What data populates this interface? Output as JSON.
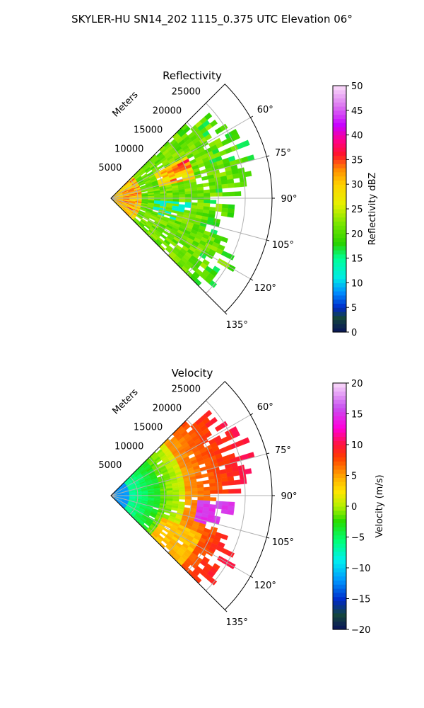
{
  "figure_title": "SKYLER-HU  SN14_202  1115_0.375 UTC Elevation 06°",
  "chart_data": [
    {
      "type": "heatmap",
      "title": "Reflectivity",
      "projection": "polar sector (azimuth from north, clockwise)",
      "range_label": "Meters",
      "range_ticks": [
        5000,
        10000,
        15000,
        20000,
        25000
      ],
      "range_tick_labels": [
        "5000",
        "10000",
        "15000",
        "20000",
        "25000"
      ],
      "range_max": 30000,
      "azimuth_ticks": [
        60,
        75,
        90,
        105,
        120,
        135
      ],
      "azimuth_tick_labels": [
        "60°",
        "75°",
        "90°",
        "105°",
        "120°",
        "135°"
      ],
      "azimuth_range": [
        45,
        135
      ],
      "grid": true,
      "colorbar": {
        "label": "Reflectivity dBZ",
        "vmin": 0,
        "vmax": 50,
        "ticks": [
          0,
          5,
          10,
          15,
          20,
          25,
          30,
          35,
          40,
          45,
          50
        ],
        "tick_labels": [
          "0",
          "5",
          "10",
          "15",
          "20",
          "25",
          "30",
          "35",
          "40",
          "45",
          "50"
        ]
      },
      "field_description": "mostly 15-25 dBZ, scattered 25-35 dBZ near 65-75° at 12-16 km, max near origin"
    },
    {
      "type": "heatmap",
      "title": "Velocity",
      "projection": "polar sector (azimuth from north, clockwise)",
      "range_label": "Meters",
      "range_ticks": [
        5000,
        10000,
        15000,
        20000,
        25000
      ],
      "range_tick_labels": [
        "5000",
        "10000",
        "15000",
        "20000",
        "25000"
      ],
      "range_max": 30000,
      "azimuth_ticks": [
        60,
        75,
        90,
        105,
        120,
        135
      ],
      "azimuth_tick_labels": [
        "60°",
        "75°",
        "90°",
        "105°",
        "120°",
        "135°"
      ],
      "azimuth_range": [
        45,
        135
      ],
      "grid": true,
      "colorbar": {
        "label": "Velocity (m/s)",
        "vmin": -20,
        "vmax": 20,
        "ticks": [
          -20,
          -15,
          -10,
          -5,
          0,
          5,
          10,
          15,
          20
        ],
        "tick_labels": [
          "−20",
          "−15",
          "−10",
          "−5",
          "0",
          "5",
          "10",
          "15",
          "20"
        ]
      },
      "field_description": "~-12 m/s near radar, -5 to 0 at mid range, +5 to +10 at far range, +15 patch near 95-105°"
    }
  ]
}
